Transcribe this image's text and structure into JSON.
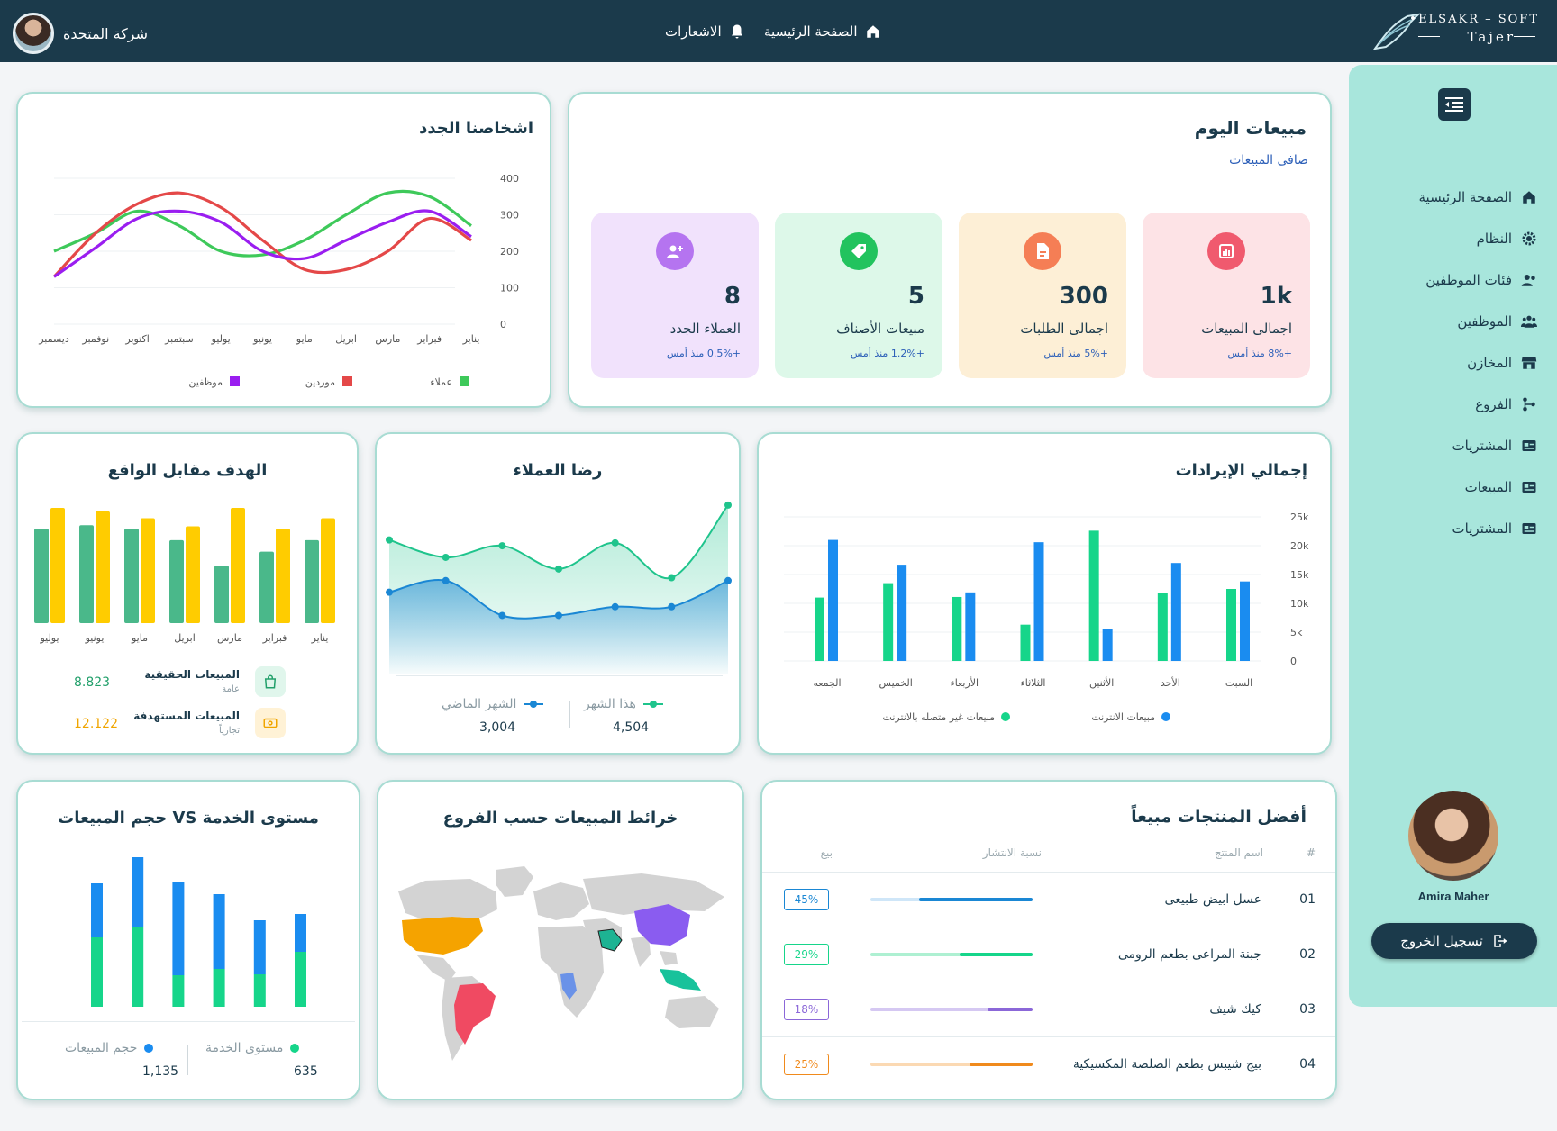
{
  "header": {
    "brand_top": "ELSAKR – SOFT",
    "brand_bottom": "Tajer",
    "nav": [
      {
        "label": "الصفحة الرئيسية",
        "icon": "home-icon"
      },
      {
        "label": "الاشعارات",
        "icon": "bell-icon"
      }
    ],
    "company": "شركة المتحدة"
  },
  "sidebar": {
    "items": [
      {
        "label": "الصفحة الرئيسية",
        "icon": "home-icon"
      },
      {
        "label": "النظام",
        "icon": "gear-icon"
      },
      {
        "label": "فئات الموظفين",
        "icon": "users-icon"
      },
      {
        "label": "الموظفين",
        "icon": "group-icon"
      },
      {
        "label": "المخازن",
        "icon": "store-icon"
      },
      {
        "label": "الفروع",
        "icon": "branch-icon"
      },
      {
        "label": "المشتريات",
        "icon": "card-icon"
      },
      {
        "label": "المبيعات",
        "icon": "card-icon"
      },
      {
        "label": "المشتريات",
        "icon": "card-icon"
      }
    ],
    "user": "Amira Maher",
    "logout": "تسجيل الخروج"
  },
  "today_sales": {
    "title": "مبيعات اليوم",
    "subtitle": "صافى المبيعات",
    "kpis": [
      {
        "value": "1k",
        "label": "اجمالى المبيعات",
        "change": "+8% منذ أمس",
        "bg": "#fde3e6",
        "color": "#f05a6e",
        "icon": "chart-icon"
      },
      {
        "value": "300",
        "label": "اجمالى الطلبات",
        "change": "+5% منذ أمس",
        "bg": "#fdefd6",
        "color": "#f57e55",
        "icon": "file-icon"
      },
      {
        "value": "5",
        "label": "مبيعات الأصناف",
        "change": "+1.2% منذ أمس",
        "bg": "#ddf8e9",
        "color": "#22c35e",
        "icon": "tag-icon"
      },
      {
        "value": "8",
        "label": "العملاء الجدد",
        "change": "+0.5% منذ أمس",
        "bg": "#f1e2fc",
        "color": "#b574f0",
        "icon": "user-plus-icon"
      }
    ]
  },
  "new_people": {
    "title": "اشخاصنا الجدد",
    "chart_data": {
      "type": "line",
      "categories": [
        "يناير",
        "فبراير",
        "مارس",
        "ابريل",
        "مايو",
        "يونيو",
        "يوليو",
        "سبتمبر",
        "اكتوبر",
        "نوفمبر",
        "ديسمبر"
      ],
      "ylim": [
        0,
        400
      ],
      "yticks": [
        0,
        100,
        200,
        300,
        400
      ],
      "series": [
        {
          "name": "عملاء",
          "color": "#3ec95a",
          "values": [
            270,
            350,
            360,
            300,
            230,
            190,
            200,
            270,
            310,
            250,
            200
          ]
        },
        {
          "name": "موردين",
          "color": "#e44848",
          "values": [
            230,
            290,
            200,
            150,
            150,
            230,
            320,
            360,
            330,
            250,
            130
          ]
        },
        {
          "name": "موظفين",
          "color": "#9a1ef0",
          "values": [
            240,
            310,
            280,
            230,
            180,
            200,
            280,
            310,
            290,
            210,
            130
          ]
        }
      ]
    }
  },
  "revenue": {
    "title": "إجمالي الإيرادات",
    "legend": [
      "مبيعات الانترنت",
      "مبيعات غير متصله بالانترنت"
    ],
    "chart_data": {
      "type": "bar",
      "categories": [
        "السبت",
        "الأحد",
        "الأثنين",
        "الثلاثاء",
        "الأربعاء",
        "الخميس",
        "الجمعه"
      ],
      "ylim": [
        0,
        25000
      ],
      "yticks": [
        "0",
        "5k",
        "10k",
        "15k",
        "20k",
        "25k"
      ],
      "series": [
        {
          "name": "مبيعات الانترنت",
          "color": "#1a8cf0",
          "values": [
            13800,
            17000,
            5600,
            20600,
            11900,
            16700,
            21000
          ]
        },
        {
          "name": "مبيعات غير متصله بالانترنت",
          "color": "#16d58a",
          "values": [
            12500,
            11800,
            22600,
            6300,
            11100,
            13500,
            11000
          ]
        }
      ]
    }
  },
  "satisfaction": {
    "title": "رضا العملاء",
    "this_month_label": "هذا الشهر",
    "last_month_label": "الشهر الماضي",
    "this_month_value": "4,504",
    "last_month_value": "3,004",
    "chart_data": {
      "type": "area",
      "x": [
        1,
        2,
        3,
        4,
        5,
        6,
        7
      ],
      "series": [
        {
          "name": "هذا الشهر",
          "color": "#1fc48c",
          "values": [
            460,
            400,
            440,
            360,
            450,
            330,
            580
          ]
        },
        {
          "name": "الشهر الماضي",
          "color": "#1a87d4",
          "values": [
            280,
            320,
            200,
            200,
            230,
            230,
            320
          ]
        }
      ]
    }
  },
  "target_vs_actual": {
    "title": "الهدف مقابل الواقع",
    "chart_data": {
      "type": "bar",
      "categories": [
        "يناير",
        "فبراير",
        "مارس",
        "ابريل",
        "مايو",
        "يونيو",
        "يوليو"
      ],
      "series": [
        {
          "name": "المبيعات الحقيقية",
          "color": "#4ab88a",
          "values": [
            72,
            62,
            50,
            72,
            82,
            85,
            82
          ]
        },
        {
          "name": "المبيعات المستهدفة",
          "color": "#ffcc00",
          "values": [
            91,
            82,
            100,
            84,
            91,
            97,
            100
          ]
        }
      ]
    },
    "rows": [
      {
        "title": "المبيعات الحقيقية",
        "sub": "عامة",
        "value": "8.823",
        "color": "#22a06b",
        "bg": "#e0f6ec",
        "icon": "bag-icon"
      },
      {
        "title": "المبيعات المستهدفة",
        "sub": "تجارياً",
        "value": "12.122",
        "color": "#f0a500",
        "bg": "#fff2d6",
        "icon": "ticket-icon"
      }
    ]
  },
  "top_products": {
    "title": "أفضل المنتجات مبيعاً",
    "headers": {
      "num": "#",
      "name": "اسم المنتج",
      "spread": "نسبة الانتشار",
      "sale": "بيع"
    },
    "rows": [
      {
        "num": "01",
        "name": "عسل ابيض طبيعى",
        "percent": 45,
        "label": "45%",
        "color": "#1a87d4",
        "light": "#cfe6f8"
      },
      {
        "num": "02",
        "name": "جبنة المراعى بطعم الرومى",
        "percent": 29,
        "label": "29%",
        "color": "#16d58a",
        "light": "#aef0d2"
      },
      {
        "num": "03",
        "name": "كيك شيف",
        "percent": 18,
        "label": "18%",
        "color": "#8b67d8",
        "light": "#d5c8f2"
      },
      {
        "num": "04",
        "name": "بيج شيبس بطعم الصلصة المكسيكية",
        "percent": 25,
        "label": "25%",
        "color": "#f08a1c",
        "light": "#fbd9b3"
      }
    ]
  },
  "sales_map": {
    "title": "خرائط المبيعات حسب الفروع"
  },
  "service_level": {
    "title": "مستوى الخدمة VS حجم المبيعات",
    "legend_service": "مستوى الخدمة",
    "legend_volume": "حجم المبيعات",
    "service_value": "635",
    "volume_value": "1,135",
    "chart_data": {
      "type": "bar",
      "categories": [
        "1",
        "2",
        "3",
        "4",
        "5",
        "6"
      ],
      "series": [
        {
          "name": "مستوى الخدمة",
          "color": "#16d58a",
          "values": [
            77,
            88,
            35,
            42,
            36,
            61
          ]
        },
        {
          "name": "حجم المبيعات",
          "color": "#1a8cf0",
          "values": [
            60,
            78,
            103,
            83,
            60,
            42
          ]
        }
      ]
    }
  }
}
